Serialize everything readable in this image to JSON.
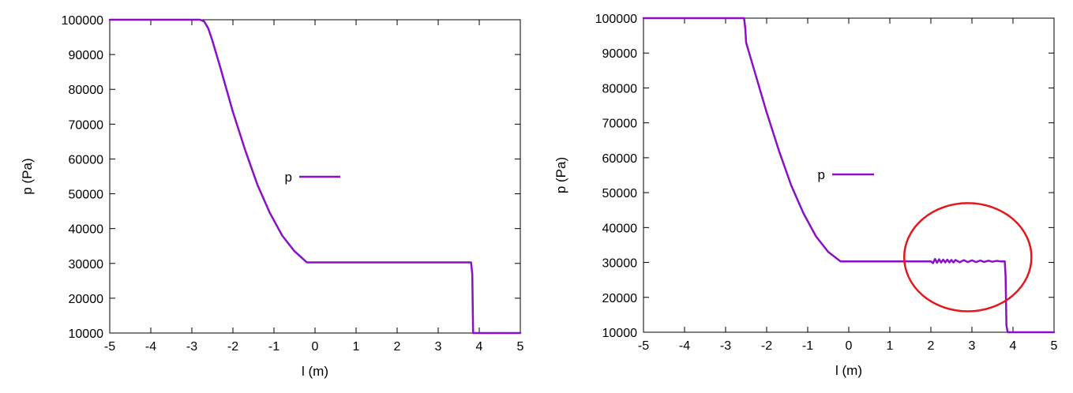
{
  "colors": {
    "series": "#8A0FC8",
    "annotation": "#E4171B",
    "axis": "#000000",
    "background": "#ffffff"
  },
  "chart_data": [
    {
      "type": "line",
      "xlabel": "l (m)",
      "ylabel": "p (Pa)",
      "xlim": [
        -5,
        5
      ],
      "ylim": [
        10000,
        100000
      ],
      "xticks": [
        -5,
        -4,
        -3,
        -2,
        -1,
        0,
        1,
        2,
        3,
        4,
        5
      ],
      "yticks": [
        10000,
        20000,
        30000,
        40000,
        50000,
        60000,
        70000,
        80000,
        90000,
        100000
      ],
      "grid": false,
      "legend_position": "center",
      "series": [
        {
          "name": "p",
          "x": [
            -5,
            -2.8,
            -2.7,
            -2.6,
            -2.5,
            -2.3,
            -2.0,
            -1.7,
            -1.4,
            -1.1,
            -0.8,
            -0.5,
            -0.2,
            0.5,
            1.5,
            2.5,
            3.5,
            3.8,
            3.83,
            3.85,
            3.9,
            5
          ],
          "y": [
            100000,
            100000,
            99500,
            97500,
            94000,
            86000,
            73500,
            62500,
            52500,
            44500,
            38000,
            33500,
            30300,
            30300,
            30300,
            30300,
            30300,
            30300,
            27000,
            10000,
            10000,
            10000
          ]
        }
      ]
    },
    {
      "type": "line",
      "xlabel": "l (m)",
      "ylabel": "p (Pa)",
      "xlim": [
        -5,
        5
      ],
      "ylim": [
        10000,
        100000
      ],
      "xticks": [
        -5,
        -4,
        -3,
        -2,
        -1,
        0,
        1,
        2,
        3,
        4,
        5
      ],
      "yticks": [
        10000,
        20000,
        30000,
        40000,
        50000,
        60000,
        70000,
        80000,
        90000,
        100000
      ],
      "grid": false,
      "legend_position": "center",
      "annotation": {
        "shape": "ellipse",
        "color": "#E4171B",
        "center_x": 2.9,
        "center_y": 31500,
        "radius_x": 1.55,
        "radius_y": 15500
      },
      "series": [
        {
          "name": "p",
          "x": [
            -5,
            -2.55,
            -2.52,
            -2.5,
            -2.45,
            -2.3,
            -2.0,
            -1.7,
            -1.4,
            -1.1,
            -0.8,
            -0.5,
            -0.2,
            0.5,
            1.5,
            2.0,
            2.05,
            2.1,
            2.15,
            2.2,
            2.25,
            2.3,
            2.35,
            2.4,
            2.45,
            2.5,
            2.55,
            2.6,
            2.7,
            2.8,
            2.9,
            3.0,
            3.1,
            3.2,
            3.3,
            3.4,
            3.5,
            3.6,
            3.7,
            3.8,
            3.82,
            3.84,
            3.87,
            3.9,
            5
          ],
          "y": [
            100000,
            100000,
            97000,
            93000,
            91000,
            85000,
            73000,
            62000,
            52000,
            44000,
            37500,
            33000,
            30300,
            30300,
            30300,
            30300,
            29800,
            31000,
            29900,
            30900,
            30000,
            30800,
            30000,
            30800,
            30000,
            30700,
            30000,
            30700,
            30050,
            30650,
            30100,
            30600,
            30100,
            30550,
            30150,
            30500,
            30200,
            30450,
            30300,
            30300,
            26000,
            12000,
            10000,
            10000,
            10000
          ]
        }
      ]
    }
  ]
}
